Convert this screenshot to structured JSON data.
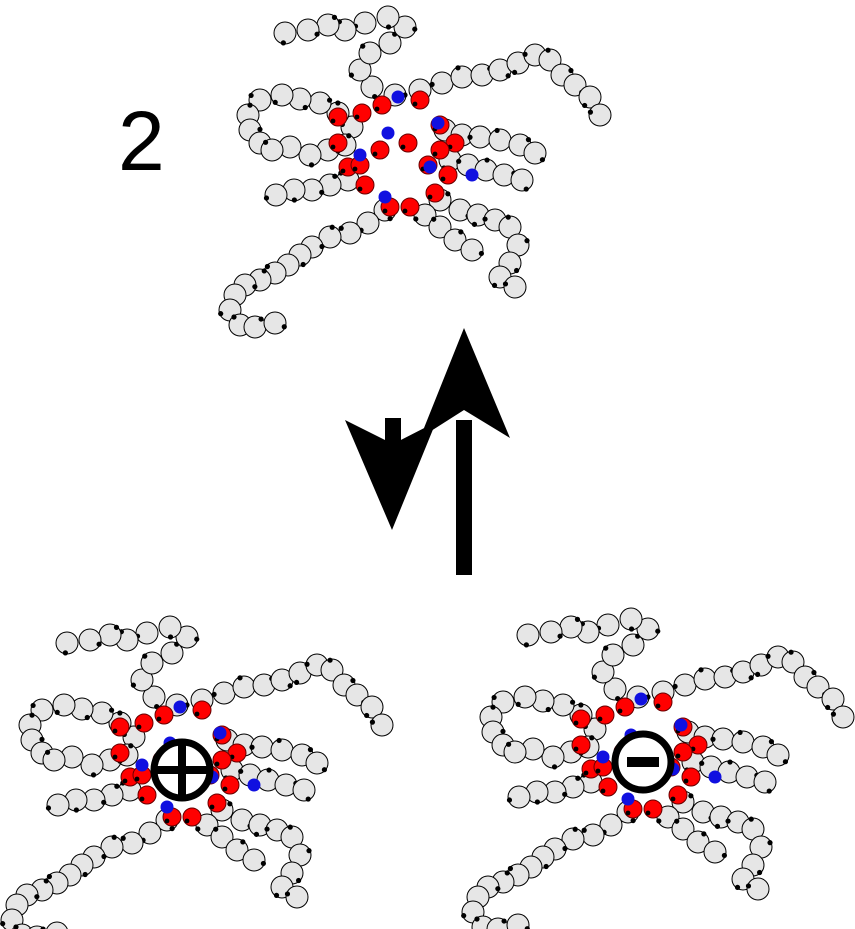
{
  "label": "2",
  "colors": {
    "bead_fill": "#e6e6e6",
    "bead_stroke": "#000000",
    "head_red": "#ff0000",
    "head_blue": "#1010e0",
    "arrow": "#000000"
  },
  "aggregates": [
    {
      "name": "neutral",
      "charge": "none"
    },
    {
      "name": "cation",
      "charge": "positive"
    },
    {
      "name": "anion",
      "charge": "negative"
    }
  ],
  "arrows": [
    {
      "name": "up",
      "direction": "up"
    },
    {
      "name": "down",
      "direction": "down"
    }
  ]
}
